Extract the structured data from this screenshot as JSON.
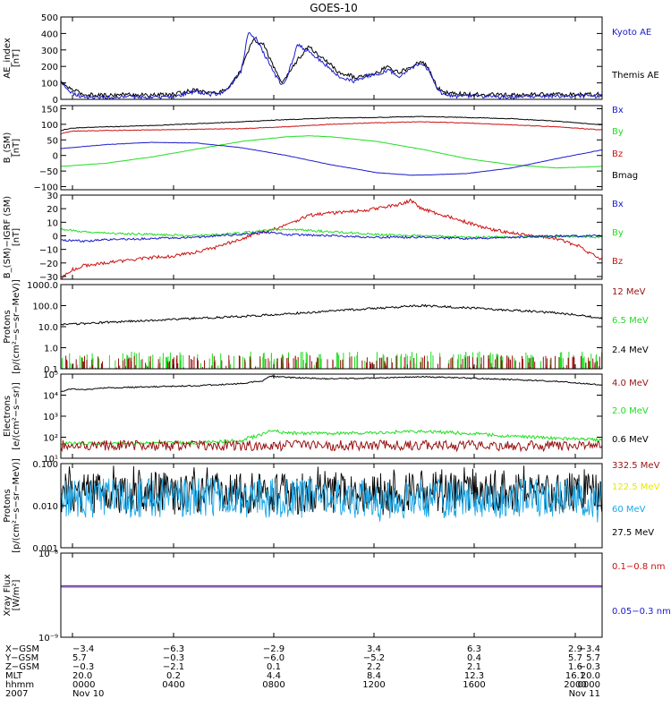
{
  "title": "GOES-10",
  "colors": {
    "black": "#000000",
    "blue": "#1a1acc",
    "red": "#cc1111",
    "green": "#22dd22",
    "darkred": "#991111",
    "yellow": "#e8e800",
    "cyan": "#1aa8e8"
  },
  "x_ticks": [
    "0000",
    "0400",
    "0800",
    "1200",
    "1600",
    "2000",
    "0000"
  ],
  "chart_data": [
    {
      "type": "line",
      "ylabel": [
        "AE_index",
        "[nT]"
      ],
      "ylim": [
        0,
        500
      ],
      "yscale": "linear",
      "yticks": [
        {
          "v": 0,
          "l": "0"
        },
        {
          "v": 100,
          "l": "100"
        },
        {
          "v": 200,
          "l": "200"
        },
        {
          "v": 300,
          "l": "300"
        },
        {
          "v": 400,
          "l": "400"
        },
        {
          "v": 500,
          "l": "500"
        }
      ],
      "legend": [
        {
          "text": "Kyoto AE",
          "color": "blue"
        },
        {
          "text": "Themis AE",
          "color": "black"
        }
      ],
      "series": [
        {
          "name": "Themis AE",
          "color": "black",
          "noise": 12,
          "x": [
            0,
            0.5,
            1,
            2,
            3,
            4,
            5,
            6,
            6.5,
            7,
            7.5,
            8,
            8.5,
            9,
            9.5,
            9.8,
            10,
            10.5,
            11,
            11.5,
            12,
            12.3,
            12.8,
            13,
            13.5,
            14,
            14.5,
            15,
            15.5,
            16,
            16.3,
            16.7,
            17,
            17.5,
            18,
            19,
            20,
            21,
            22,
            23,
            24
          ],
          "y": [
            100,
            60,
            30,
            25,
            30,
            25,
            30,
            60,
            40,
            40,
            80,
            180,
            360,
            330,
            180,
            100,
            140,
            240,
            320,
            260,
            210,
            160,
            150,
            130,
            150,
            160,
            200,
            160,
            200,
            230,
            190,
            70,
            40,
            35,
            30,
            30,
            25,
            30,
            30,
            30,
            30
          ]
        },
        {
          "name": "Kyoto AE",
          "color": "blue",
          "noise": 12,
          "x": [
            0,
            0.5,
            1,
            2,
            3,
            4,
            5,
            6,
            6.5,
            7,
            7.5,
            8,
            8.3,
            8.6,
            9,
            9.5,
            9.8,
            10,
            10.5,
            11,
            11.5,
            12,
            12.3,
            12.8,
            13,
            13.5,
            14,
            14.5,
            15,
            15.5,
            16,
            16.3,
            16.7,
            17,
            17.5,
            18,
            19,
            20,
            21,
            22,
            23,
            24
          ],
          "y": [
            110,
            40,
            15,
            10,
            15,
            10,
            15,
            50,
            30,
            30,
            80,
            170,
            400,
            380,
            280,
            150,
            90,
            120,
            330,
            290,
            240,
            180,
            140,
            120,
            110,
            140,
            150,
            180,
            140,
            190,
            220,
            180,
            60,
            30,
            20,
            20,
            15,
            15,
            20,
            20,
            20,
            20
          ]
        }
      ]
    },
    {
      "type": "line",
      "ylabel": [
        "B_(SM)",
        "[nT]"
      ],
      "ylim": [
        -110,
        160
      ],
      "yscale": "linear",
      "yticks": [
        {
          "v": -100,
          "l": "−100"
        },
        {
          "v": -50,
          "l": "−50"
        },
        {
          "v": 0,
          "l": "0"
        },
        {
          "v": 50,
          "l": "50"
        },
        {
          "v": 100,
          "l": "100"
        },
        {
          "v": 150,
          "l": "150"
        }
      ],
      "legend": [
        {
          "text": "Bx",
          "color": "blue"
        },
        {
          "text": "By",
          "color": "green"
        },
        {
          "text": "Bz",
          "color": "red"
        },
        {
          "text": "Bmag",
          "color": "black"
        }
      ],
      "series": [
        {
          "name": "Bmag",
          "color": "black",
          "noise": 1,
          "x": [
            0,
            0.5,
            2,
            4,
            6,
            8,
            10,
            12,
            14,
            16,
            18,
            20,
            22,
            24
          ],
          "y": [
            80,
            88,
            92,
            96,
            102,
            108,
            115,
            120,
            122,
            125,
            122,
            118,
            110,
            98
          ]
        },
        {
          "name": "Bz",
          "color": "red",
          "noise": 1,
          "x": [
            0,
            0.5,
            2,
            4,
            6,
            8,
            10,
            12,
            14,
            16,
            18,
            20,
            22,
            24
          ],
          "y": [
            70,
            78,
            80,
            82,
            84,
            86,
            92,
            100,
            105,
            108,
            104,
            98,
            92,
            82
          ]
        },
        {
          "name": "By",
          "color": "green",
          "noise": 0.5,
          "x": [
            0,
            2,
            4,
            6,
            8,
            10,
            11,
            12,
            14,
            16,
            18,
            20,
            22,
            24
          ],
          "y": [
            -35,
            -25,
            -5,
            20,
            45,
            60,
            63,
            60,
            45,
            20,
            -10,
            -30,
            -40,
            -35
          ]
        },
        {
          "name": "Bx",
          "color": "blue",
          "noise": 0.5,
          "x": [
            0,
            2,
            4,
            6,
            8,
            10,
            12,
            14,
            15.5,
            16,
            18,
            20,
            22,
            24
          ],
          "y": [
            22,
            35,
            42,
            40,
            25,
            0,
            -30,
            -55,
            -63,
            -63,
            -58,
            -40,
            -10,
            18
          ]
        }
      ]
    },
    {
      "type": "line",
      "ylabel": [
        "B_(SM)−IGRF (SM)",
        "[nT]"
      ],
      "ylim": [
        -32,
        30
      ],
      "yscale": "linear",
      "yticks": [
        {
          "v": -30,
          "l": "−30"
        },
        {
          "v": -20,
          "l": "−20"
        },
        {
          "v": -10,
          "l": "−10"
        },
        {
          "v": 0,
          "l": "0"
        },
        {
          "v": 10,
          "l": "10"
        },
        {
          "v": 20,
          "l": "20"
        },
        {
          "v": 30,
          "l": "30"
        }
      ],
      "legend": [
        {
          "text": "Bx",
          "color": "blue"
        },
        {
          "text": "By",
          "color": "green"
        },
        {
          "text": "Bz",
          "color": "red"
        }
      ],
      "series": [
        {
          "name": "Bz",
          "color": "red",
          "noise": 1.2,
          "x": [
            0,
            0.5,
            1,
            2,
            3,
            4,
            5,
            6,
            7,
            8,
            9,
            10,
            11,
            12,
            13,
            14,
            15,
            15.5,
            16,
            17,
            18,
            19,
            20,
            21,
            22,
            23,
            24
          ],
          "y": [
            -32,
            -25,
            -22,
            -20,
            -18,
            -16,
            -15,
            -12,
            -8,
            -2,
            3,
            8,
            15,
            17,
            18,
            20,
            23,
            26,
            20,
            15,
            10,
            5,
            2,
            0,
            -2,
            -8,
            -18
          ]
        },
        {
          "name": "By",
          "color": "green",
          "noise": 0.8,
          "x": [
            0,
            1,
            2,
            4,
            6,
            8,
            9,
            10,
            12,
            14,
            16,
            18,
            20,
            22,
            24
          ],
          "y": [
            5,
            3,
            2,
            1,
            0,
            2,
            4,
            5,
            3,
            1,
            0,
            -1,
            -1,
            0,
            -1
          ]
        },
        {
          "name": "Bx",
          "color": "blue",
          "noise": 0.8,
          "x": [
            0,
            1,
            2,
            4,
            6,
            8,
            9,
            10,
            12,
            14,
            16,
            18,
            20,
            22,
            24
          ],
          "y": [
            -3,
            -4,
            -3,
            -2,
            -1,
            1,
            3,
            1,
            0,
            -1,
            -1,
            -2,
            -1,
            0,
            0
          ]
        }
      ]
    },
    {
      "type": "line",
      "ylabel": [
        "Protons",
        "[p/(cm²−s−sr−MeV)]"
      ],
      "ylim": [
        0.1,
        1000
      ],
      "yscale": "log",
      "yticks": [
        {
          "v": 0.1,
          "l": "0.1"
        },
        {
          "v": 1,
          "l": "1.0"
        },
        {
          "v": 10,
          "l": "10.0"
        },
        {
          "v": 100,
          "l": "100.0"
        },
        {
          "v": 1000,
          "l": "1000.0"
        }
      ],
      "legend": [
        {
          "text": "12 MeV",
          "color": "darkred"
        },
        {
          "text": "6.5 MeV",
          "color": "green"
        },
        {
          "text": "2.4 MeV",
          "color": "black"
        }
      ],
      "series": [
        {
          "name": "2.4 MeV",
          "color": "black",
          "noise": 0.05,
          "x": [
            0,
            1,
            2,
            4,
            6,
            8,
            10,
            12,
            14,
            16,
            18,
            20,
            22,
            24
          ],
          "y": [
            12,
            14,
            16,
            20,
            25,
            30,
            40,
            55,
            75,
            100,
            80,
            60,
            45,
            25
          ]
        },
        {
          "name": "6.5 MeV",
          "color": "green",
          "style": "spikes",
          "base": 0.1,
          "x": [
            0,
            24
          ],
          "y": [
            0.3,
            0.3
          ]
        },
        {
          "name": "12 MeV",
          "color": "darkred",
          "style": "spikes",
          "base": 0.1,
          "x": [
            0,
            24
          ],
          "y": [
            0.2,
            0.2
          ]
        }
      ]
    },
    {
      "type": "line",
      "ylabel": [
        "Electrons",
        "[e/(cm²−s−sr)]"
      ],
      "ylim": [
        10,
        100000
      ],
      "yscale": "log",
      "yticks": [
        {
          "v": 10,
          "l": "10¹"
        },
        {
          "v": 100,
          "l": "10²"
        },
        {
          "v": 1000,
          "l": "10³"
        },
        {
          "v": 10000,
          "l": "10⁴"
        },
        {
          "v": 100000,
          "l": "10⁵"
        }
      ],
      "legend": [
        {
          "text": "4.0 MeV",
          "color": "darkred"
        },
        {
          "text": "2.0 MeV",
          "color": "green"
        },
        {
          "text": "0.6 MeV",
          "color": "black"
        }
      ],
      "series": [
        {
          "name": "0.6 MeV",
          "color": "black",
          "noise": 0.03,
          "x": [
            0,
            0.5,
            1,
            2,
            4,
            6,
            8,
            9,
            9.3,
            10,
            12,
            14,
            15,
            16,
            18,
            20,
            22,
            24
          ],
          "y": [
            15000,
            20000,
            18000,
            22000,
            25000,
            28000,
            35000,
            50000,
            80000,
            70000,
            60000,
            65000,
            70000,
            75000,
            65000,
            55000,
            45000,
            30000
          ]
        },
        {
          "name": "2.0 MeV",
          "color": "green",
          "noise": 0.08,
          "x": [
            0,
            2,
            4,
            6,
            8,
            8.8,
            9.3,
            10,
            12,
            14,
            15,
            16,
            18,
            20,
            22,
            24
          ],
          "y": [
            50,
            50,
            52,
            55,
            70,
            120,
            200,
            160,
            150,
            160,
            180,
            190,
            150,
            110,
            90,
            75
          ]
        },
        {
          "name": "4.0 MeV",
          "color": "darkred",
          "noise": 0.25,
          "x": [
            0,
            24
          ],
          "y": [
            40,
            40
          ]
        }
      ]
    },
    {
      "type": "line",
      "ylabel": [
        "Protons",
        "[p/(cm²−s−sr−MeV)]"
      ],
      "ylim": [
        0.001,
        0.1
      ],
      "yscale": "log",
      "yticks": [
        {
          "v": 0.001,
          "l": "0.001"
        },
        {
          "v": 0.01,
          "l": "0.010"
        },
        {
          "v": 0.1,
          "l": "0.100"
        }
      ],
      "legend": [
        {
          "text": "332.5 MeV",
          "color": "darkred"
        },
        {
          "text": "122.5 MeV",
          "color": "yellow"
        },
        {
          "text": "60 MeV",
          "color": "cyan"
        },
        {
          "text": "27.5 MeV",
          "color": "black"
        }
      ],
      "series": [
        {
          "name": "27.5 MeV",
          "color": "black",
          "style": "band",
          "x": [
            0,
            24
          ],
          "y": [
            0.02,
            0.02
          ],
          "lo": 0.006,
          "hi": 0.09
        },
        {
          "name": "60 MeV",
          "color": "cyan",
          "style": "band",
          "x": [
            0,
            24
          ],
          "y": [
            0.015,
            0.015
          ],
          "lo": 0.004,
          "hi": 0.035
        }
      ]
    },
    {
      "type": "line",
      "ylabel": [
        "Xray Flux",
        "[W/m²]"
      ],
      "ylim": [
        1e-09,
        1e-08
      ],
      "yscale": "log",
      "yticks": [
        {
          "v": 1e-09,
          "l": "10⁻⁹"
        },
        {
          "v": 1e-08,
          "l": "10⁻⁸"
        }
      ],
      "legend": [
        {
          "text": "0.1−0.8 nm",
          "color": "red"
        },
        {
          "text": "0.05−0.3 nm",
          "color": "blue"
        }
      ],
      "series": [
        {
          "name": "0.1−0.8 nm",
          "color": "red",
          "noise": 0,
          "x": [
            0,
            24
          ],
          "y": [
            4.1e-09,
            4.1e-09
          ]
        },
        {
          "name": "0.05−0.3 nm",
          "color": "blue",
          "noise": 0,
          "x": [
            0,
            24
          ],
          "y": [
            3.95e-09,
            3.95e-09
          ]
        }
      ]
    }
  ],
  "ephemeris": {
    "rows": [
      {
        "label": "X−GSM",
        "values": [
          "−3.4",
          "−6.3",
          "−2.9",
          "3.4",
          "6.3",
          "2.9",
          "−3.4"
        ]
      },
      {
        "label": "Y−GSM",
        "values": [
          "5.7",
          "−0.3",
          "−6.0",
          "−5.2",
          "0.4",
          "5.7",
          "5.7"
        ]
      },
      {
        "label": "Z−GSM",
        "values": [
          "−0.3",
          "−2.1",
          "0.1",
          "2.2",
          "2.1",
          "1.6",
          "−0.3"
        ]
      },
      {
        "label": "MLT",
        "values": [
          "20.0",
          "0.2",
          "4.4",
          "8.4",
          "12.3",
          "16.1",
          "20.0"
        ]
      },
      {
        "label": "hhmm",
        "values": [
          "0000",
          "0400",
          "0800",
          "1200",
          "1600",
          "2000",
          "0000"
        ]
      }
    ],
    "date_row": {
      "label": "2007",
      "start": "Nov 10",
      "end": "Nov 11"
    }
  }
}
